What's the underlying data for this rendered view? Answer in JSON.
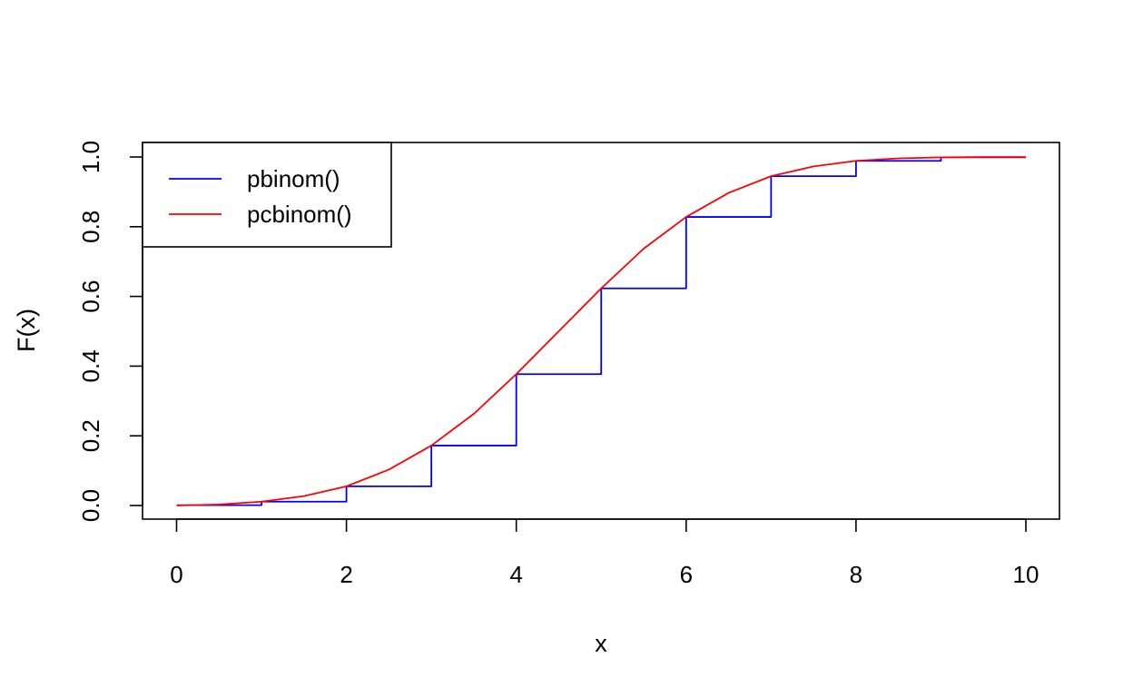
{
  "chart_data": {
    "type": "line",
    "title": "",
    "xlabel": "x",
    "ylabel": "F(x)",
    "xlim": [
      0,
      10
    ],
    "ylim": [
      0,
      1
    ],
    "x_ticks": [
      "0",
      "2",
      "4",
      "6",
      "8",
      "10"
    ],
    "y_ticks": [
      "0.0",
      "0.2",
      "0.4",
      "0.6",
      "0.8",
      "1.0"
    ],
    "grid": false,
    "legend": {
      "position": "top-left"
    },
    "series": [
      {
        "name": "pbinom()",
        "style": "step",
        "color": "#0000ff",
        "x": [
          0,
          1,
          2,
          3,
          4,
          5,
          6,
          7,
          8,
          9
        ],
        "values": [
          0.001,
          0.011,
          0.055,
          0.172,
          0.377,
          0.623,
          0.828,
          0.945,
          0.989,
          0.999
        ]
      },
      {
        "name": "pcbinom()",
        "style": "smooth",
        "color": "#ff0000",
        "x": [
          0,
          0.5,
          1,
          1.5,
          2,
          2.5,
          3,
          3.5,
          4,
          4.5,
          5,
          5.5,
          6,
          6.5,
          7,
          7.5,
          8,
          8.5,
          9,
          9.5,
          10
        ],
        "values": [
          0.0,
          0.003,
          0.011,
          0.027,
          0.055,
          0.103,
          0.172,
          0.263,
          0.377,
          0.5,
          0.623,
          0.737,
          0.828,
          0.897,
          0.945,
          0.973,
          0.989,
          0.996,
          0.999,
          1.0,
          1.0
        ]
      }
    ]
  }
}
